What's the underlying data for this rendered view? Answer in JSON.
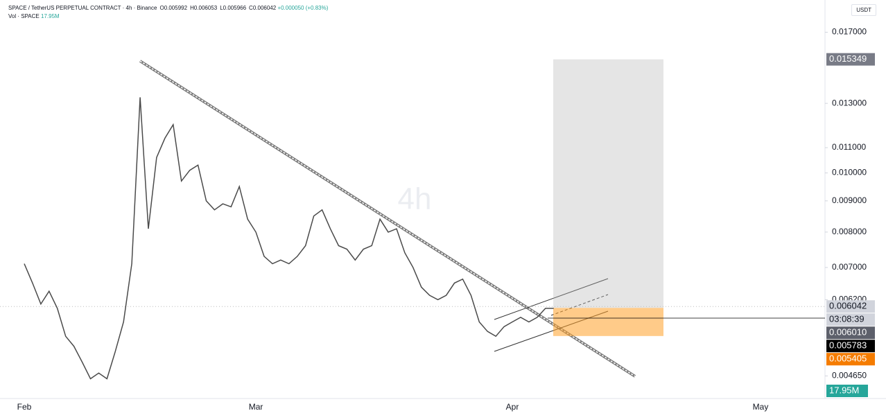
{
  "header": {
    "symbol": "SPACE / TetherUS PERPETUAL CONTRACT · 4h · Binance",
    "ohlc": [
      {
        "key": "O",
        "value": "0.005992"
      },
      {
        "key": "H",
        "value": "0.006053"
      },
      {
        "key": "L",
        "value": "0.005966"
      },
      {
        "key": "C",
        "value": "0.006042"
      }
    ],
    "change": "+0.000050 (+0.83%)",
    "volume_name": "Vol · SPACE",
    "volume_value": "17.95M"
  },
  "currency": "USDT",
  "chart_data": {
    "type": "line",
    "watermark": "4h",
    "log_scale": true,
    "grid": false,
    "color": "#4a4a4a",
    "categories": [
      "Feb",
      null,
      null,
      null,
      null,
      null,
      null,
      null,
      null,
      null,
      null,
      null,
      null,
      null,
      null,
      null,
      null,
      null,
      null,
      null,
      null,
      null,
      null,
      null,
      null,
      null,
      null,
      null,
      "Mar",
      null,
      null,
      null,
      null,
      null,
      null,
      null,
      null,
      null,
      null,
      null,
      null,
      null,
      null,
      null,
      null,
      null,
      null,
      null,
      null,
      null,
      null,
      null,
      null,
      null,
      null,
      null,
      null,
      null,
      null,
      "Apr",
      null,
      null,
      null,
      null,
      null,
      null,
      null,
      null,
      null,
      null,
      null,
      null,
      null,
      null,
      null,
      null,
      null,
      null,
      null,
      null,
      null,
      null,
      null,
      null,
      null,
      null,
      null,
      null,
      null,
      "May"
    ],
    "values": [
      0.0071,
      0.0066,
      0.0061,
      0.0064,
      0.006,
      0.0054,
      0.0052,
      0.0049,
      0.0046,
      0.0047,
      0.0046,
      0.0051,
      0.0057,
      0.0071,
      0.0133,
      0.0081,
      0.0106,
      0.0114,
      0.012,
      0.0097,
      0.0101,
      0.0103,
      0.009,
      0.0087,
      0.0089,
      0.0088,
      0.0095,
      0.0084,
      0.008,
      0.0073,
      0.0071,
      0.0072,
      0.0071,
      0.0073,
      0.0076,
      0.0085,
      0.0087,
      0.0081,
      0.0076,
      0.0075,
      0.0072,
      0.0075,
      0.0076,
      0.0084,
      0.008,
      0.0081,
      0.0074,
      0.007,
      0.0065,
      0.0063,
      0.0062,
      0.0063,
      0.0066,
      0.0067,
      0.0063,
      0.0057,
      0.0055,
      0.0054,
      0.0056,
      0.0057,
      0.0058,
      0.0057,
      0.0058,
      0.006,
      0.006,
      null,
      null,
      null,
      null,
      null,
      null,
      null,
      null,
      null,
      null,
      null,
      null,
      null,
      null,
      null,
      null,
      null,
      null,
      null,
      null,
      null,
      null,
      null,
      null,
      null
    ],
    "ylim": [
      0.00427,
      0.0192
    ],
    "yticks": [
      {
        "value": 0.017,
        "label": "0.017000"
      },
      {
        "value": 0.013,
        "label": "0.013000"
      },
      {
        "value": 0.011,
        "label": "0.011000"
      },
      {
        "value": 0.01,
        "label": "0.010000"
      },
      {
        "value": 0.009,
        "label": "0.009000"
      },
      {
        "value": 0.008,
        "label": "0.008000"
      },
      {
        "value": 0.007,
        "label": "0.007000"
      },
      {
        "value": 0.0062,
        "label": "0.006200"
      },
      {
        "value": 0.00465,
        "label": "0.004650"
      }
    ],
    "price_labels": [
      {
        "value": 0.015349,
        "label": "0.015349",
        "color": "#787b86"
      },
      {
        "value": 0.006042,
        "label": "0.006042",
        "color": "#d1d4dc"
      },
      {
        "value": 0.00601,
        "label": "0.006010",
        "color": "#5d606b"
      },
      {
        "value": 0.005783,
        "label": "0.005783",
        "color": "#000000"
      },
      {
        "value": 0.005405,
        "label": "0.005405",
        "color": "#f57c00"
      }
    ],
    "countdown": "03:08:39",
    "volume_badge": "17.95M"
  }
}
